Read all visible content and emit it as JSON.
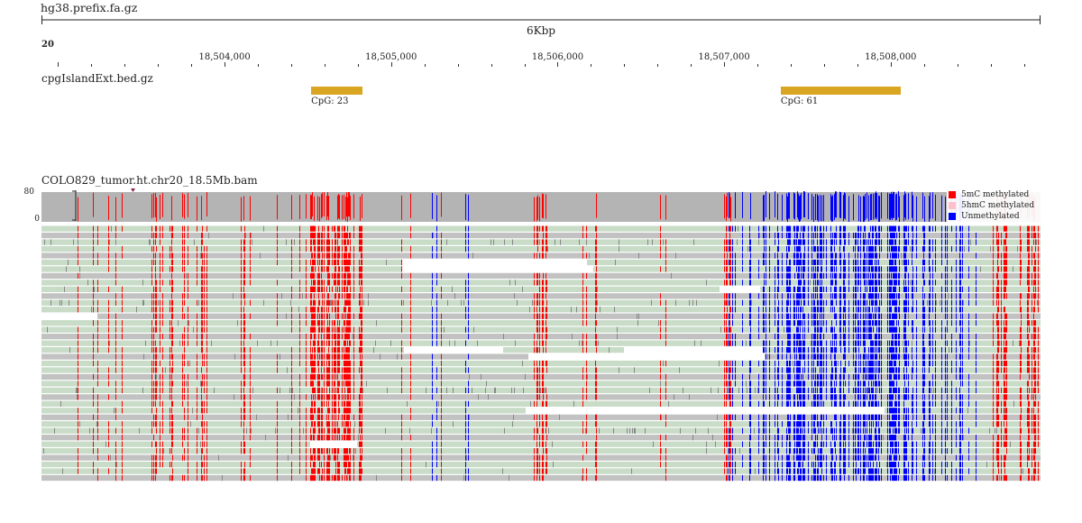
{
  "genome": {
    "label": "hg38.prefix.fa.gz"
  },
  "ruler": {
    "span_label": "6Kbp",
    "chromosome": "20",
    "start_bp": 18502900,
    "end_bp": 18508900,
    "tick_labels": [
      {
        "bp": 18504000,
        "text": "18,504,000"
      },
      {
        "bp": 18505000,
        "text": "18,505,000"
      },
      {
        "bp": 18506000,
        "text": "18,506,000"
      },
      {
        "bp": 18507000,
        "text": "18,507,000"
      },
      {
        "bp": 18508000,
        "text": "18,508,000"
      }
    ]
  },
  "tracks": {
    "cpg": {
      "label": "cpgIslandExt.bed.gz",
      "color": "#daa520",
      "features": [
        {
          "name": "CpG: 23",
          "start_bp": 18504520,
          "end_bp": 18504830
        },
        {
          "name": "CpG: 61",
          "start_bp": 18507340,
          "end_bp": 18508060
        }
      ]
    },
    "alignment": {
      "label": "COLO829_tumor.ht.chr20_18.5Mb.bam",
      "coverage_scale": {
        "max": "80",
        "min": "0"
      },
      "read_rows": 38,
      "legend": [
        {
          "label": "5mC methylated",
          "color": "#ff0000"
        },
        {
          "label": "5hmC methylated",
          "color": "#ffc0cb"
        },
        {
          "label": "Unmethylated",
          "color": "#0000ff"
        }
      ],
      "colors": {
        "coverage": "#b4b4b4",
        "read_forward": "#c8dcc8",
        "read_reverse": "#c2c2c2",
        "methylated": "#ff0000",
        "unmethylated": "#0000ff"
      }
    }
  }
}
